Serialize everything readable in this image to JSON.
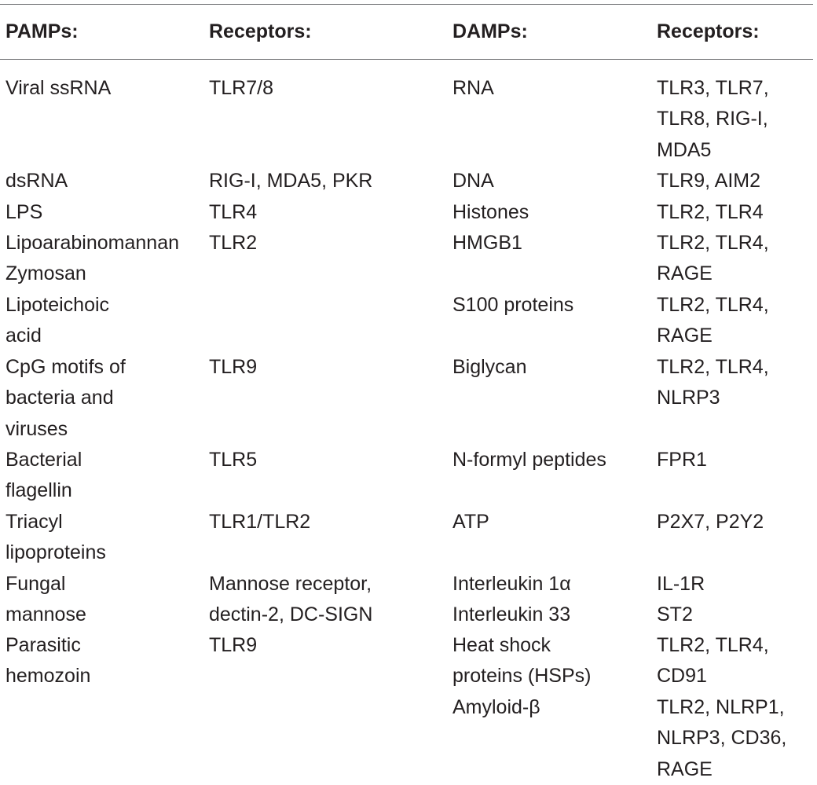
{
  "table": {
    "headers": [
      "PAMPs:",
      "Receptors:",
      "DAMPs:",
      "Receptors:"
    ],
    "pamps": [
      {
        "name": "Viral ssRNA",
        "receptors": "TLR7/8"
      },
      {
        "name": "dsRNA",
        "receptors": "RIG-I, MDA5, PKR"
      },
      {
        "name": "LPS",
        "receptors": "TLR4"
      },
      {
        "name": "Lipoarabinomannan\nZymosan",
        "receptors": "TLR2"
      },
      {
        "name": "Lipoteichoic\nacid",
        "receptors": ""
      },
      {
        "name": "CpG motifs of\nbacteria and\nviruses",
        "receptors": "TLR9"
      },
      {
        "name": "Bacterial\nflagellin",
        "receptors": "TLR5"
      },
      {
        "name": "Triacyl\nlipoproteins",
        "receptors": "TLR1/TLR2"
      },
      {
        "name": "Fungal\nmannose",
        "receptors": "Mannose receptor,\ndectin-2, DC-SIGN"
      },
      {
        "name": "Parasitic\nhemozoin",
        "receptors": "TLR9"
      }
    ],
    "damps": [
      {
        "name": "RNA",
        "receptors": "TLR3, TLR7,\nTLR8, RIG-I,\nMDA5"
      },
      {
        "name": "DNA",
        "receptors": "TLR9, AIM2"
      },
      {
        "name": "Histones",
        "receptors": "TLR2, TLR4"
      },
      {
        "name": "HMGB1",
        "receptors": "TLR2, TLR4,\nRAGE"
      },
      {
        "name": "S100 proteins",
        "receptors": "TLR2, TLR4,\nRAGE"
      },
      {
        "name": "Biglycan",
        "receptors": "TLR2, TLR4,\nNLRP3"
      },
      {
        "name": "N-formyl peptides",
        "receptors": "FPR1"
      },
      {
        "name": "ATP",
        "receptors": "P2X7, P2Y2"
      },
      {
        "name": "Interleukin 1α",
        "receptors": "IL-1R"
      },
      {
        "name": "Interleukin 33",
        "receptors": "ST2"
      },
      {
        "name": "Heat shock\nproteins (HSPs)",
        "receptors": "TLR2, TLR4,\nCD91"
      },
      {
        "name": "Amyloid-β",
        "receptors": "TLR2, NLRP1,\nNLRP3, CD36,\nRAGE"
      }
    ]
  }
}
